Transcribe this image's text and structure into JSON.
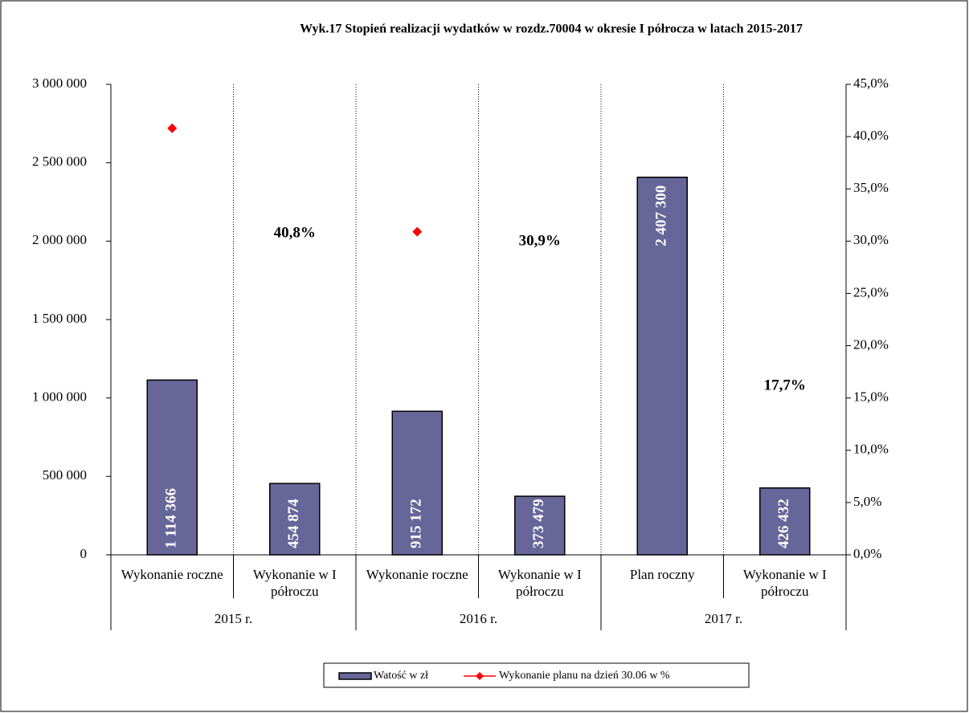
{
  "chart_data": {
    "type": "bar",
    "title": "Wyk.17 Stopień realizacji wydatków w rozdz.70004 w okresie I półrocza w latach 2015-2017",
    "categories": [
      "Wykonanie roczne",
      "Wykonanie w I półroczu",
      "Wykonanie roczne",
      "Wykonanie w I półroczu",
      "Plan roczny",
      "Wykonanie w I półroczu"
    ],
    "groups": [
      "2015 r.",
      "2016 r.",
      "2017 r."
    ],
    "series": [
      {
        "name": "Watość w zł",
        "type": "bar",
        "color": "#666699",
        "values": [
          1114366,
          454874,
          915172,
          373479,
          2407300,
          426432
        ],
        "value_labels": [
          "1 114 366",
          "454 874",
          "915 172",
          "373 479",
          "2 407 300",
          "426 432"
        ]
      },
      {
        "name": "Wykonanie planu na dzień 30.06 w %",
        "type": "line",
        "axis": "y2",
        "color": "#ff0000",
        "values": [
          40.8,
          null,
          30.9,
          null,
          null,
          null
        ]
      }
    ],
    "annotations": [
      "40,8%",
      "30,9%",
      "17,7%"
    ],
    "ylim": [
      0,
      3000000
    ],
    "yticks": [
      0,
      {
        "value": 500000,
        "label": "500 000"
      },
      {
        "value": 1000000,
        "label": "1 000 000"
      },
      {
        "value": 1500000,
        "label": "1 500 000"
      },
      {
        "value": 2000000,
        "label": "2 000 000"
      },
      {
        "value": 2500000,
        "label": "2 500 000"
      },
      {
        "value": 3000000,
        "label": "3 000 000"
      }
    ],
    "y2lim": [
      0,
      45
    ],
    "y2ticks": [
      {
        "value": 0,
        "label": "0,0%"
      },
      {
        "value": 5,
        "label": "5,0%"
      },
      {
        "value": 10,
        "label": "10,0%"
      },
      {
        "value": 15,
        "label": "15,0%"
      },
      {
        "value": 20,
        "label": "20,0%"
      },
      {
        "value": 25,
        "label": "25,0%"
      },
      {
        "value": 30,
        "label": "30,0%"
      },
      {
        "value": 35,
        "label": "35,0%"
      },
      {
        "value": 40,
        "label": "40,0%"
      },
      {
        "value": 45,
        "label": "45,0%"
      }
    ],
    "legend": "bottom"
  }
}
